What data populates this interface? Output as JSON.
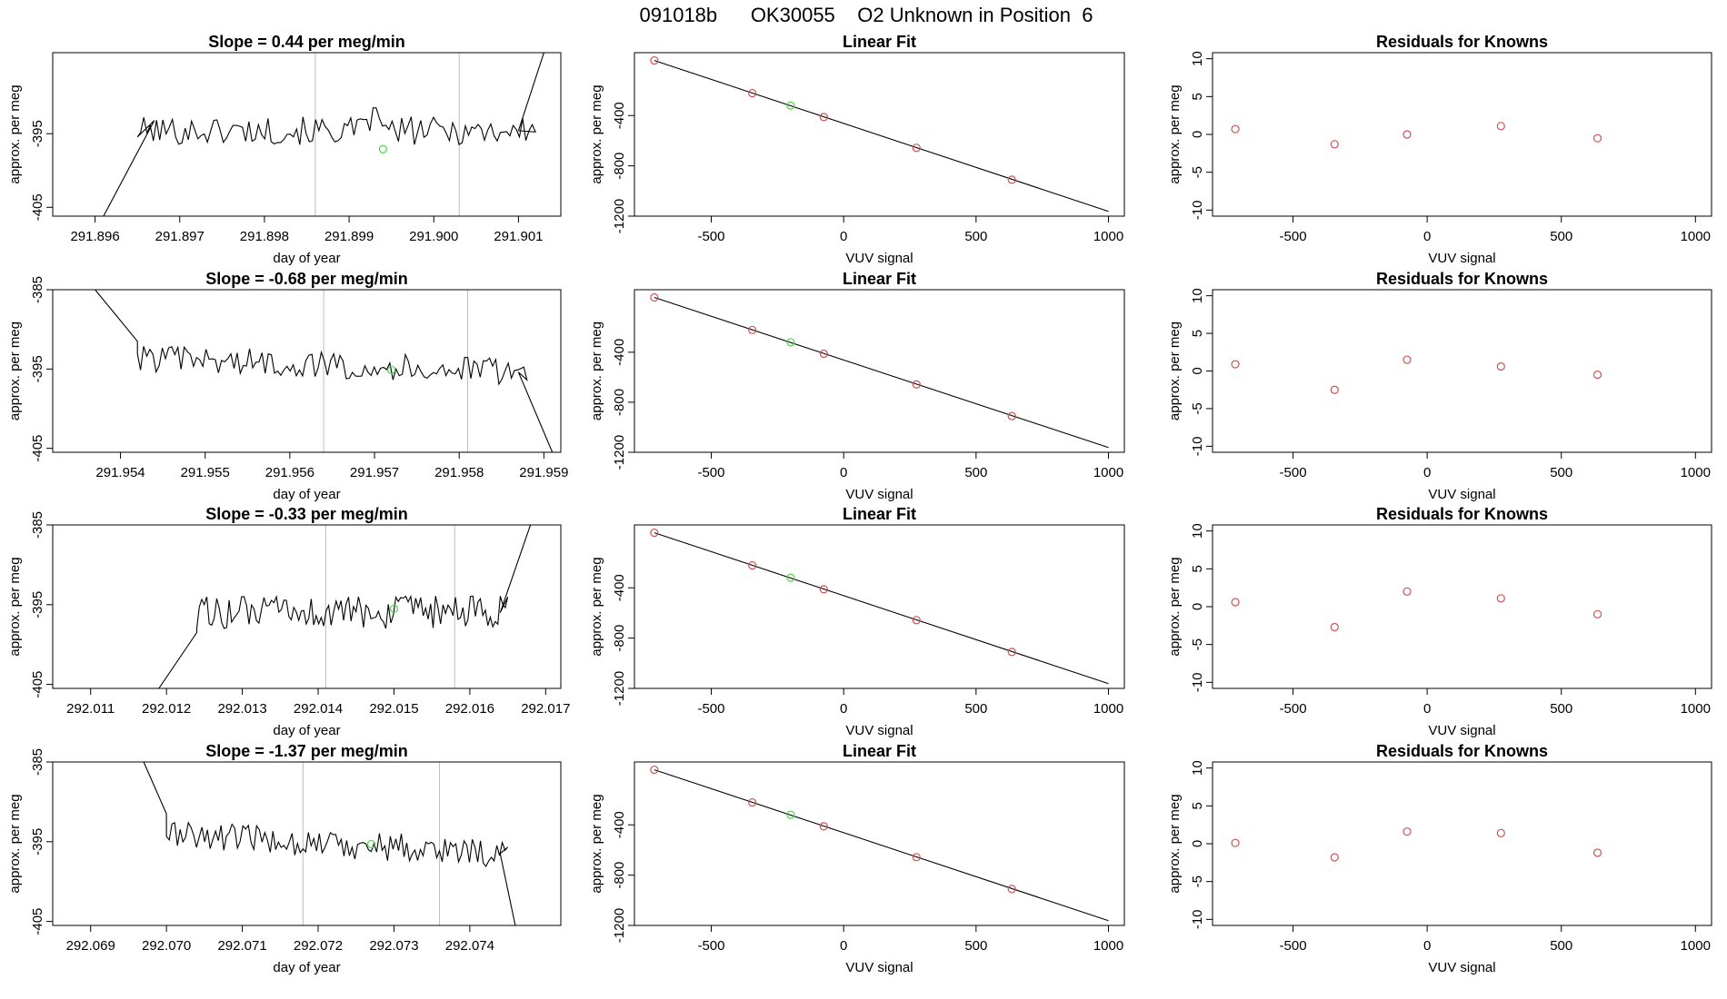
{
  "figure": {
    "title": "091018b      OK30055    O2 Unknown in Position  6"
  },
  "chart_data": [
    {
      "type": "line",
      "title": "Slope =  0.44  per meg/min",
      "xlabel": "day of year",
      "ylabel": "approx. per meg",
      "xlim": [
        291.8955,
        291.9015
      ],
      "ylim": [
        -406.2,
        -384
      ],
      "x_ticks": [
        "291.896",
        "291.897",
        "291.898",
        "291.899",
        "291.900",
        "291.901"
      ],
      "x_tick_values": [
        291.896,
        291.897,
        291.898,
        291.899,
        291.9,
        291.901
      ],
      "y_ticks": [
        "-395",
        "-405"
      ],
      "y_tick_values": [
        -395,
        -405
      ],
      "x_start": 291.8965,
      "x_end": 291.9012,
      "x_ramp": [
        291.8961,
        291.8967
      ],
      "y_ramp": [
        -406.2,
        -393.2
      ],
      "base": -394.6,
      "amplitude": 1.9,
      "rise": {
        "start": 291.901,
        "end": 291.9013,
        "to": -384
      },
      "peaks": [
        {
          "x": 291.8993,
          "y": -391.5
        }
      ],
      "vlines": [
        291.8986,
        291.9003
      ],
      "green_point": {
        "x": 291.8994,
        "y": -397.1
      },
      "grid": false
    },
    {
      "type": "line",
      "title": "Slope =  -0.68  per meg/min",
      "xlabel": "day of year",
      "ylabel": "approx. per meg",
      "xlim": [
        291.9532,
        291.9592
      ],
      "ylim": [
        -405.5,
        -385
      ],
      "x_ticks": [
        "291.954",
        "291.955",
        "291.956",
        "291.957",
        "291.958",
        "291.959"
      ],
      "x_tick_values": [
        291.954,
        291.955,
        291.956,
        291.957,
        291.958,
        291.959
      ],
      "y_ticks": [
        "-385",
        "-395",
        "-405"
      ],
      "y_tick_values": [
        -385,
        -395,
        -405
      ],
      "x_start": 291.9542,
      "x_end": 291.9588,
      "x_ramp": [
        291.9537,
        291.9542
      ],
      "y_ramp": [
        -385,
        -391.5
      ],
      "base": -393.6,
      "amplitude": 1.7,
      "drift": -1.8,
      "rise": {
        "start": 291.9587,
        "end": 291.9591,
        "to": -405.5
      },
      "peaks": [],
      "vlines": [
        291.9564,
        291.9581
      ],
      "green_point": {
        "x": 291.9572,
        "y": -395.1
      },
      "grid": false
    },
    {
      "type": "line",
      "title": "Slope =  -0.33  per meg/min",
      "xlabel": "day of year",
      "ylabel": "approx. per meg",
      "xlim": [
        292.0105,
        292.0172
      ],
      "ylim": [
        -405.5,
        -385
      ],
      "x_ticks": [
        "292.011",
        "292.012",
        "292.013",
        "292.014",
        "292.015",
        "292.016",
        "292.017"
      ],
      "x_tick_values": [
        292.011,
        292.012,
        292.013,
        292.014,
        292.015,
        292.016,
        292.017
      ],
      "y_ticks": [
        "-385",
        "-395",
        "-405"
      ],
      "y_tick_values": [
        -385,
        -395,
        -405
      ],
      "x_start": 292.0124,
      "x_end": 292.0165,
      "x_ramp": [
        292.0119,
        292.0124
      ],
      "y_ramp": [
        -405.5,
        -398.5
      ],
      "base": -396,
      "amplitude": 2.1,
      "rise": {
        "start": 292.0164,
        "end": 292.0168,
        "to": -385
      },
      "peaks": [],
      "vlines": [
        292.0141,
        292.0158
      ],
      "green_point": {
        "x": 292.015,
        "y": -395.5
      },
      "grid": false
    },
    {
      "type": "line",
      "title": "Slope =  -1.37  per meg/min",
      "xlabel": "day of year",
      "ylabel": "approx. per meg",
      "xlim": [
        292.0685,
        292.0752
      ],
      "ylim": [
        -405.5,
        -385
      ],
      "x_ticks": [
        "292.069",
        "292.070",
        "292.071",
        "292.072",
        "292.073",
        "292.074"
      ],
      "x_tick_values": [
        292.069,
        292.07,
        292.071,
        292.072,
        292.073,
        292.074
      ],
      "y_ticks": [
        "-385",
        "-395",
        "-405"
      ],
      "y_tick_values": [
        -385,
        -395,
        -405
      ],
      "x_start": 292.07,
      "x_end": 292.0745,
      "x_ramp": [
        292.0697,
        292.07
      ],
      "y_ramp": [
        -385,
        -391.5
      ],
      "base": -394,
      "amplitude": 1.8,
      "drift": -2.5,
      "rise": {
        "start": 292.0744,
        "end": 292.0746,
        "to": -405.5
      },
      "peaks": [],
      "vlines": [
        292.0718,
        292.0736
      ],
      "green_point": {
        "x": 292.0727,
        "y": -395.3
      },
      "grid": false
    },
    {
      "type": "scatter",
      "title": "Linear Fit",
      "xlabel": "VUV signal",
      "ylabel": "approx. per meg",
      "xlim": [
        -790,
        1060
      ],
      "ylim": [
        -1200,
        100
      ],
      "x_ticks": [
        "-500",
        "0",
        "500",
        "1000"
      ],
      "x_tick_values": [
        -500,
        0,
        500,
        1000
      ],
      "y_ticks": [
        "-400",
        "-800",
        "-1200"
      ],
      "y_tick_values": [
        -400,
        -800,
        -1200
      ],
      "fit_line": {
        "x": [
          -715,
          1000
        ],
        "y": [
          38,
          -1162
        ]
      },
      "points": {
        "x": [
          -715,
          -345,
          -75,
          275,
          635
        ],
        "y": [
          38,
          -222,
          -412,
          -657,
          -910
        ]
      },
      "green_point": {
        "x": -200,
        "y": -320
      },
      "grid": false
    },
    {
      "type": "scatter",
      "title": "Linear Fit",
      "xlabel": "VUV signal",
      "ylabel": "approx. per meg",
      "xlim": [
        -790,
        1060
      ],
      "ylim": [
        -1200,
        100
      ],
      "x_ticks": [
        "-500",
        "0",
        "500",
        "1000"
      ],
      "x_tick_values": [
        -500,
        0,
        500,
        1000
      ],
      "y_ticks": [
        "-400",
        "-800",
        "-1200"
      ],
      "y_tick_values": [
        -400,
        -800,
        -1200
      ],
      "fit_line": {
        "x": [
          -715,
          1000
        ],
        "y": [
          38,
          -1162
        ]
      },
      "points": {
        "x": [
          -715,
          -345,
          -75,
          275,
          635
        ],
        "y": [
          38,
          -222,
          -412,
          -657,
          -910
        ]
      },
      "green_point": {
        "x": -200,
        "y": -320
      },
      "grid": false
    },
    {
      "type": "scatter",
      "title": "Linear Fit",
      "xlabel": "VUV signal",
      "ylabel": "approx. per meg",
      "xlim": [
        -790,
        1060
      ],
      "ylim": [
        -1200,
        100
      ],
      "x_ticks": [
        "-500",
        "0",
        "500",
        "1000"
      ],
      "x_tick_values": [
        -500,
        0,
        500,
        1000
      ],
      "y_ticks": [
        "-400",
        "-800",
        "-1200"
      ],
      "y_tick_values": [
        -400,
        -800,
        -1200
      ],
      "fit_line": {
        "x": [
          -715,
          1000
        ],
        "y": [
          38,
          -1162
        ]
      },
      "points": {
        "x": [
          -715,
          -345,
          -75,
          275,
          635
        ],
        "y": [
          38,
          -222,
          -412,
          -657,
          -910
        ]
      },
      "green_point": {
        "x": -200,
        "y": -320
      },
      "grid": false
    },
    {
      "type": "scatter",
      "title": "Linear Fit",
      "xlabel": "VUV signal",
      "ylabel": "approx. per meg",
      "xlim": [
        -790,
        1060
      ],
      "ylim": [
        -1200,
        100
      ],
      "x_ticks": [
        "-500",
        "0",
        "500",
        "1000"
      ],
      "x_tick_values": [
        -500,
        0,
        500,
        1000
      ],
      "y_ticks": [
        "-400",
        "-800",
        "-1200"
      ],
      "y_tick_values": [
        -400,
        -800,
        -1200
      ],
      "fit_line": {
        "x": [
          -715,
          1000
        ],
        "y": [
          38,
          -1162
        ]
      },
      "points": {
        "x": [
          -715,
          -345,
          -75,
          275,
          635
        ],
        "y": [
          38,
          -222,
          -412,
          -657,
          -910
        ]
      },
      "green_point": {
        "x": -200,
        "y": -320
      },
      "grid": false
    },
    {
      "type": "scatter",
      "title": "Residuals for Knowns",
      "xlabel": "VUV signal",
      "ylabel": "approx. per meg",
      "xlim": [
        -800,
        1060
      ],
      "ylim": [
        -10.8,
        10.8
      ],
      "x_ticks": [
        "-500",
        "0",
        "500",
        "1000"
      ],
      "x_tick_values": [
        -500,
        0,
        500,
        1000
      ],
      "y_ticks": [
        "10",
        "5",
        "0",
        "-5",
        "-10"
      ],
      "y_tick_values": [
        10,
        5,
        0,
        -5,
        -10
      ],
      "points": {
        "x": [
          -715,
          -345,
          -75,
          275,
          635
        ],
        "y": [
          0.7,
          -1.3,
          0.0,
          1.1,
          -0.5
        ]
      },
      "grid": false
    },
    {
      "type": "scatter",
      "title": "Residuals for Knowns",
      "xlabel": "VUV signal",
      "ylabel": "approx. per meg",
      "xlim": [
        -800,
        1060
      ],
      "ylim": [
        -10.8,
        10.8
      ],
      "x_ticks": [
        "-500",
        "0",
        "500",
        "1000"
      ],
      "x_tick_values": [
        -500,
        0,
        500,
        1000
      ],
      "y_ticks": [
        "10",
        "5",
        "0",
        "-5",
        "-10"
      ],
      "y_tick_values": [
        10,
        5,
        0,
        -5,
        -10
      ],
      "points": {
        "x": [
          -715,
          -345,
          -75,
          275,
          635
        ],
        "y": [
          0.9,
          -2.5,
          1.5,
          0.6,
          -0.5
        ]
      },
      "grid": false
    },
    {
      "type": "scatter",
      "title": "Residuals for Knowns",
      "xlabel": "VUV signal",
      "ylabel": "approx. per meg",
      "xlim": [
        -800,
        1060
      ],
      "ylim": [
        -10.8,
        10.8
      ],
      "x_ticks": [
        "-500",
        "0",
        "500",
        "1000"
      ],
      "x_tick_values": [
        -500,
        0,
        500,
        1000
      ],
      "y_ticks": [
        "10",
        "5",
        "0",
        "-5",
        "-10"
      ],
      "y_tick_values": [
        10,
        5,
        0,
        -5,
        -10
      ],
      "points": {
        "x": [
          -715,
          -345,
          -75,
          275,
          635
        ],
        "y": [
          0.6,
          -2.7,
          2.0,
          1.1,
          -1.0
        ]
      },
      "grid": false
    },
    {
      "type": "scatter",
      "title": "Residuals for Knowns",
      "xlabel": "VUV signal",
      "ylabel": "approx. per meg",
      "xlim": [
        -800,
        1060
      ],
      "ylim": [
        -10.8,
        10.8
      ],
      "x_ticks": [
        "-500",
        "0",
        "500",
        "1000"
      ],
      "x_tick_values": [
        -500,
        0,
        500,
        1000
      ],
      "y_ticks": [
        "10",
        "5",
        "0",
        "-5",
        "-10"
      ],
      "y_tick_values": [
        10,
        5,
        0,
        -5,
        -10
      ],
      "points": {
        "x": [
          -715,
          -345,
          -75,
          275,
          635
        ],
        "y": [
          0.1,
          -1.8,
          1.6,
          1.4,
          -1.2
        ]
      },
      "grid": false
    }
  ]
}
